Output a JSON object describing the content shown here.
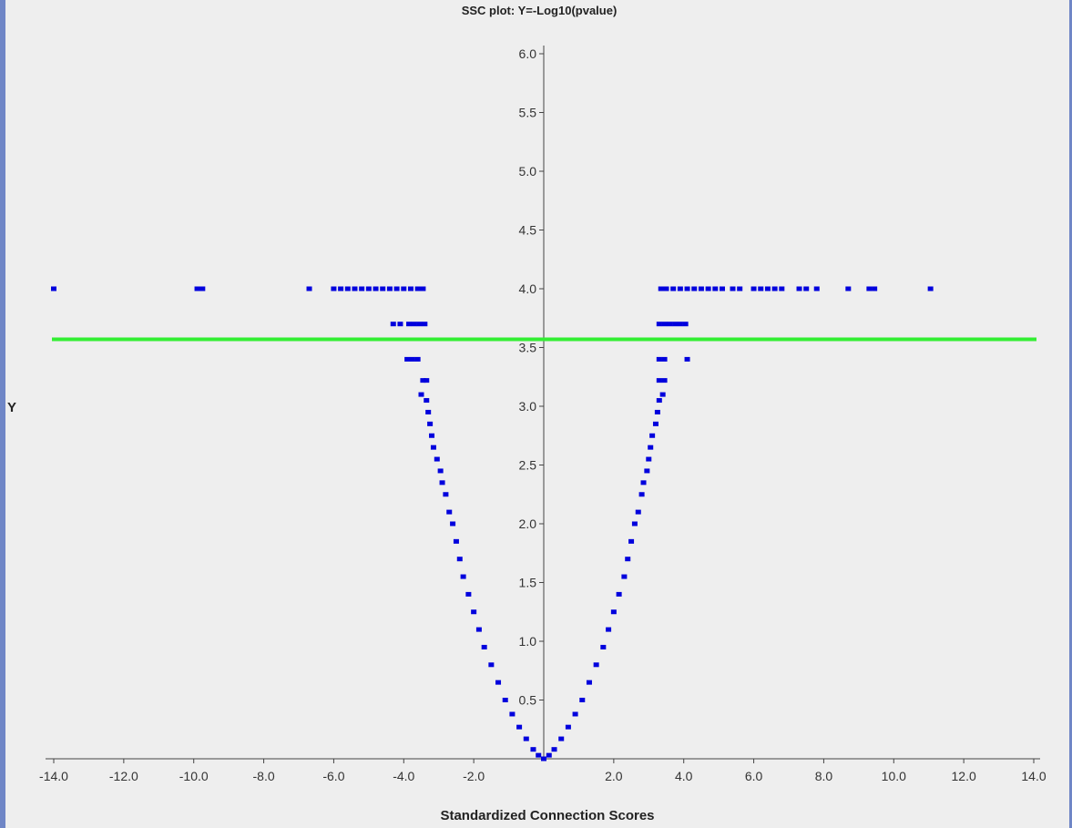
{
  "chart_data": {
    "type": "scatter",
    "title": "SSC plot: Y=-Log10(pvalue)",
    "xlabel": "Standardized Connection Scores",
    "ylabel": "Y",
    "xlim": [
      -14.0,
      14.0
    ],
    "ylim": [
      0.0,
      6.0
    ],
    "x_ticks": [
      "-14.0",
      "-12.0",
      "-10.0",
      "-8.0",
      "-6.0",
      "-4.0",
      "-2.0",
      "2.0",
      "4.0",
      "6.0",
      "8.0",
      "10.0",
      "12.0",
      "14.0"
    ],
    "x_tick_values": [
      -14,
      -12,
      -10,
      -8,
      -6,
      -4,
      -2,
      2,
      4,
      6,
      8,
      10,
      12,
      14
    ],
    "y_ticks": [
      "6.0",
      "5.5",
      "5.0",
      "4.5",
      "4.0",
      "3.5",
      "3.0",
      "2.5",
      "2.0",
      "1.5",
      "1.0",
      "0.5"
    ],
    "y_tick_values": [
      6.0,
      5.5,
      5.0,
      4.5,
      4.0,
      3.5,
      3.0,
      2.5,
      2.0,
      1.5,
      1.0,
      0.5
    ],
    "threshold_line": {
      "y": 3.57,
      "color": "#33ee33"
    },
    "point_color": "#0000dd",
    "grid": false,
    "series": [
      {
        "points": [
          [
            -14.0,
            4.0
          ],
          [
            -9.9,
            4.0
          ],
          [
            -9.75,
            4.0
          ],
          [
            -6.7,
            4.0
          ],
          [
            -6.0,
            4.0
          ],
          [
            -5.8,
            4.0
          ],
          [
            -5.6,
            4.0
          ],
          [
            -5.4,
            4.0
          ],
          [
            -5.2,
            4.0
          ],
          [
            -5.0,
            4.0
          ],
          [
            -4.8,
            4.0
          ],
          [
            -4.6,
            4.0
          ],
          [
            -4.4,
            4.0
          ],
          [
            -4.2,
            4.0
          ],
          [
            -4.0,
            4.0
          ],
          [
            -3.8,
            4.0
          ],
          [
            -3.6,
            4.0
          ],
          [
            -3.45,
            4.0
          ],
          [
            -4.3,
            3.7
          ],
          [
            -4.1,
            3.7
          ],
          [
            -3.85,
            3.7
          ],
          [
            -3.7,
            3.7
          ],
          [
            -3.55,
            3.7
          ],
          [
            -3.4,
            3.7
          ],
          [
            -3.9,
            3.4
          ],
          [
            -3.75,
            3.4
          ],
          [
            -3.6,
            3.4
          ],
          [
            -3.45,
            3.22
          ],
          [
            -3.35,
            3.22
          ],
          [
            -3.5,
            3.1
          ],
          [
            -3.35,
            3.05
          ],
          [
            -3.3,
            2.95
          ],
          [
            -3.25,
            2.85
          ],
          [
            -3.2,
            2.75
          ],
          [
            -3.15,
            2.65
          ],
          [
            -3.05,
            2.55
          ],
          [
            -2.95,
            2.45
          ],
          [
            -2.9,
            2.35
          ],
          [
            -2.8,
            2.25
          ],
          [
            -2.7,
            2.1
          ],
          [
            -2.6,
            2.0
          ],
          [
            -2.5,
            1.85
          ],
          [
            -2.4,
            1.7
          ],
          [
            -2.3,
            1.55
          ],
          [
            -2.15,
            1.4
          ],
          [
            -2.0,
            1.25
          ],
          [
            -1.85,
            1.1
          ],
          [
            -1.7,
            0.95
          ],
          [
            -1.5,
            0.8
          ],
          [
            -1.3,
            0.65
          ],
          [
            -1.1,
            0.5
          ],
          [
            -0.9,
            0.38
          ],
          [
            -0.7,
            0.27
          ],
          [
            -0.5,
            0.17
          ],
          [
            -0.3,
            0.08
          ],
          [
            -0.15,
            0.03
          ],
          [
            0.0,
            0.0
          ],
          [
            0.15,
            0.03
          ],
          [
            0.3,
            0.08
          ],
          [
            0.5,
            0.17
          ],
          [
            0.7,
            0.27
          ],
          [
            0.9,
            0.38
          ],
          [
            1.1,
            0.5
          ],
          [
            1.3,
            0.65
          ],
          [
            1.5,
            0.8
          ],
          [
            1.7,
            0.95
          ],
          [
            1.85,
            1.1
          ],
          [
            2.0,
            1.25
          ],
          [
            2.15,
            1.4
          ],
          [
            2.3,
            1.55
          ],
          [
            2.4,
            1.7
          ],
          [
            2.5,
            1.85
          ],
          [
            2.6,
            2.0
          ],
          [
            2.7,
            2.1
          ],
          [
            2.8,
            2.25
          ],
          [
            2.85,
            2.35
          ],
          [
            2.95,
            2.45
          ],
          [
            3.0,
            2.55
          ],
          [
            3.05,
            2.65
          ],
          [
            3.1,
            2.75
          ],
          [
            3.2,
            2.85
          ],
          [
            3.25,
            2.95
          ],
          [
            3.3,
            3.05
          ],
          [
            3.4,
            3.1
          ],
          [
            3.3,
            3.22
          ],
          [
            3.45,
            3.22
          ],
          [
            3.3,
            3.4
          ],
          [
            3.45,
            3.4
          ],
          [
            4.1,
            3.4
          ],
          [
            3.3,
            3.7
          ],
          [
            3.45,
            3.7
          ],
          [
            3.6,
            3.7
          ],
          [
            3.75,
            3.7
          ],
          [
            3.9,
            3.7
          ],
          [
            4.05,
            3.7
          ],
          [
            3.35,
            4.0
          ],
          [
            3.5,
            4.0
          ],
          [
            3.7,
            4.0
          ],
          [
            3.9,
            4.0
          ],
          [
            4.1,
            4.0
          ],
          [
            4.3,
            4.0
          ],
          [
            4.5,
            4.0
          ],
          [
            4.7,
            4.0
          ],
          [
            4.9,
            4.0
          ],
          [
            5.1,
            4.0
          ],
          [
            5.4,
            4.0
          ],
          [
            5.6,
            4.0
          ],
          [
            6.0,
            4.0
          ],
          [
            6.2,
            4.0
          ],
          [
            6.4,
            4.0
          ],
          [
            6.6,
            4.0
          ],
          [
            6.8,
            4.0
          ],
          [
            7.3,
            4.0
          ],
          [
            7.5,
            4.0
          ],
          [
            7.8,
            4.0
          ],
          [
            8.7,
            4.0
          ],
          [
            9.3,
            4.0
          ],
          [
            9.45,
            4.0
          ],
          [
            11.05,
            4.0
          ]
        ]
      }
    ]
  }
}
